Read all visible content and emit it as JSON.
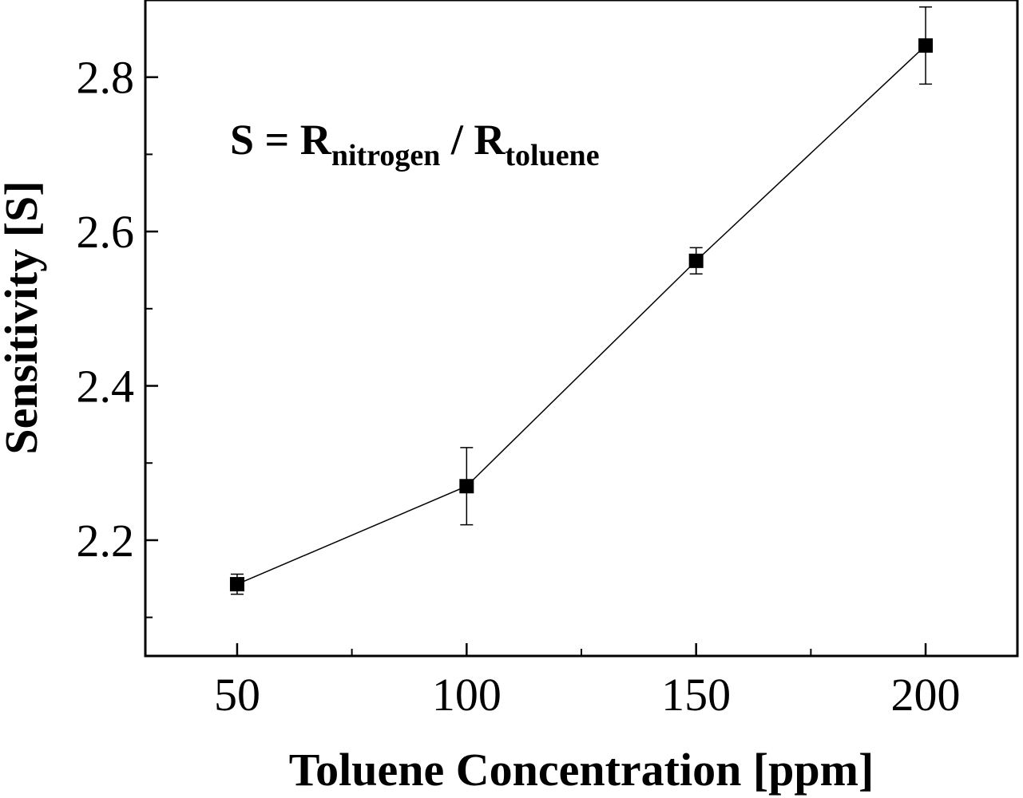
{
  "chart_data": {
    "type": "line",
    "xlabel": "Toluene Concentration [ppm]",
    "ylabel": "Sensitivity [S]",
    "xlim": [
      30,
      220
    ],
    "ylim": [
      2.05,
      2.9
    ],
    "x_ticks": [
      50,
      100,
      150,
      200
    ],
    "y_ticks": [
      2.2,
      2.4,
      2.6,
      2.8
    ],
    "x_tick_labels": [
      "50",
      "100",
      "150",
      "200"
    ],
    "y_tick_labels": [
      "2.2",
      "2.4",
      "2.6",
      "2.8"
    ],
    "grid": false,
    "marker": "square",
    "color": "#000000",
    "series": [
      {
        "x": [
          50,
          100,
          150,
          200
        ],
        "y": [
          2.143,
          2.27,
          2.562,
          2.841
        ],
        "error": [
          0.013,
          0.05,
          0.017,
          0.05
        ]
      }
    ],
    "annotation": {
      "main": "S = R",
      "sub1": "nitrogen",
      "slash": " / R",
      "sub2": "toluene"
    }
  }
}
